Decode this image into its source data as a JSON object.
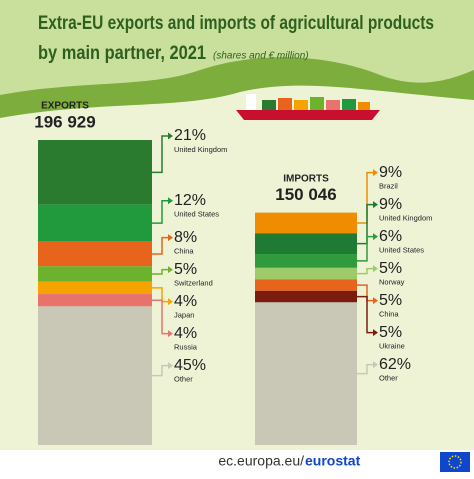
{
  "chart_data": {
    "type": "stacked_bar",
    "title": [
      "Extra-EU exports and imports of agricultural products",
      "by main partner, 2021"
    ],
    "subtitle": "(shares and € million)",
    "groups": [
      {
        "name": "EXPORTS",
        "total": 196929,
        "total_label": "196 929",
        "segments": [
          {
            "name": "United Kingdom",
            "value": 21,
            "label": "21%",
            "color": "#2a7a30"
          },
          {
            "name": "United States",
            "value": 12,
            "label": "12%",
            "color": "#219a3e"
          },
          {
            "name": "China",
            "value": 8,
            "label": "8%",
            "color": "#e8641c"
          },
          {
            "name": "Switzerland",
            "value": 5,
            "label": "5%",
            "color": "#6cb22c"
          },
          {
            "name": "Japan",
            "value": 4,
            "label": "4%",
            "color": "#f4a300"
          },
          {
            "name": "Russia",
            "value": 4,
            "label": "4%",
            "color": "#e8736d"
          },
          {
            "name": "Other",
            "value": 45,
            "label": "45%",
            "color": "#c9c7b5"
          }
        ]
      },
      {
        "name": "IMPORTS",
        "total": 150046,
        "total_label": "150 046",
        "segments": [
          {
            "name": "Brazil",
            "value": 9,
            "label": "9%",
            "color": "#f08c00"
          },
          {
            "name": "United Kingdom",
            "value": 9,
            "label": "9%",
            "color": "#1f7a34"
          },
          {
            "name": "United States",
            "value": 6,
            "label": "6%",
            "color": "#2f9b3d"
          },
          {
            "name": "Norway",
            "value": 5,
            "label": "5%",
            "color": "#9dcb6a"
          },
          {
            "name": "China",
            "value": 5,
            "label": "5%",
            "color": "#e8641c"
          },
          {
            "name": "Ukraine",
            "value": 5,
            "label": "5%",
            "color": "#7a1d10"
          },
          {
            "name": "Other",
            "value": 62,
            "label": "62%",
            "color": "#c9c7b5"
          }
        ]
      }
    ]
  },
  "footer": {
    "site": "ec.europa.eu/",
    "brand": "eurostat"
  }
}
